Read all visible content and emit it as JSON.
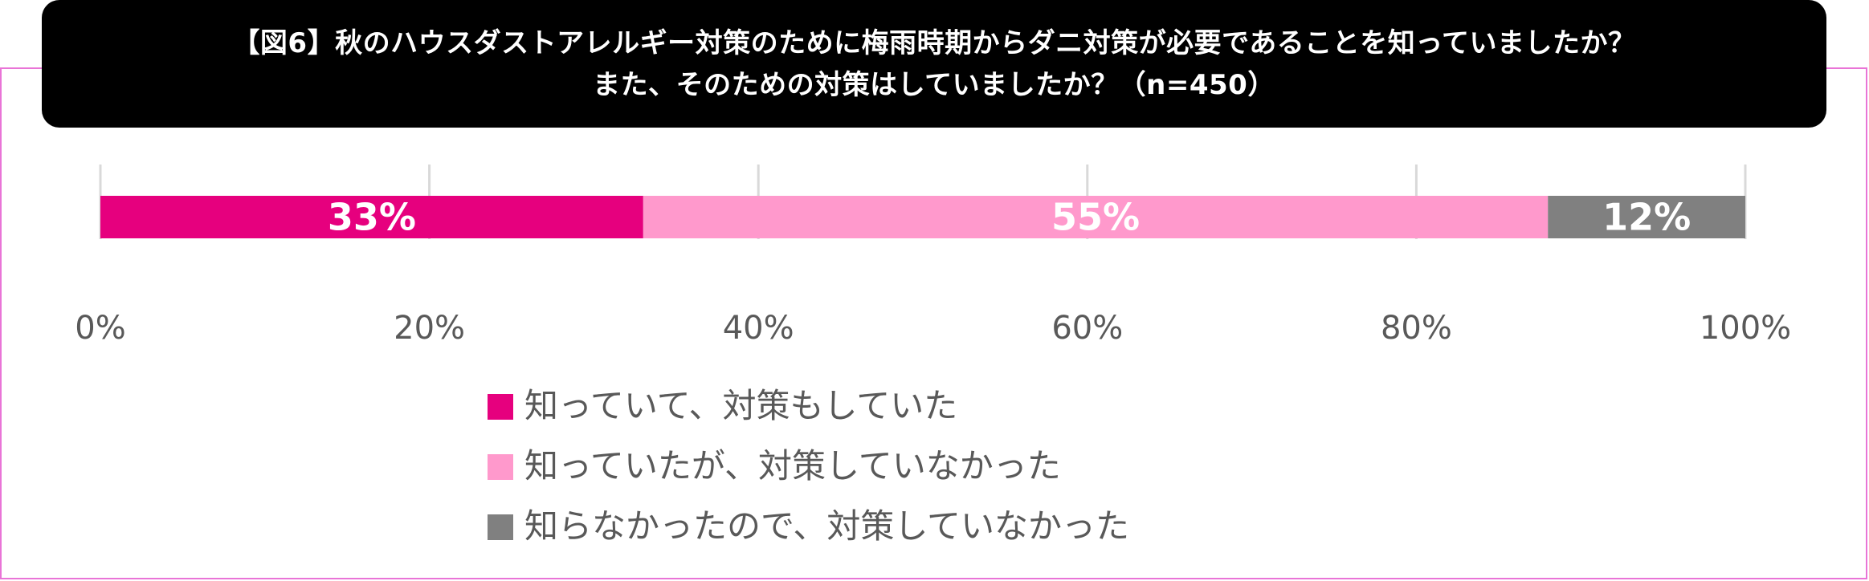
{
  "chart_data": {
    "type": "bar",
    "orientation": "horizontal-stacked-100",
    "title_lines": [
      "【図6】秋のハウスダストアレルギー対策のために梅雨時期からダニ対策が必要であることを知っていましたか？",
      "また、そのための対策はしていましたか？（n=450）"
    ],
    "x_ticks": [
      "0%",
      "20%",
      "40%",
      "60%",
      "80%",
      "100%"
    ],
    "xlim": [
      0,
      100
    ],
    "grid": true,
    "legend_position": "bottom",
    "series": [
      {
        "name": "知っていて、対策もしていた",
        "value": 33,
        "label": "33%",
        "color": "#e6007e"
      },
      {
        "name": "知っていたが、対策していなかった",
        "value": 55,
        "label": "55%",
        "color": "#ff99cc"
      },
      {
        "name": "知らなかったので、対策していなかった",
        "value": 12,
        "label": "12%",
        "color": "#808080"
      }
    ]
  },
  "colors": {
    "frame_border": "#e974d7",
    "title_background": "#000000",
    "title_text": "#ffffff",
    "axis_text": "#595959",
    "gridline": "#d9d9d9"
  }
}
